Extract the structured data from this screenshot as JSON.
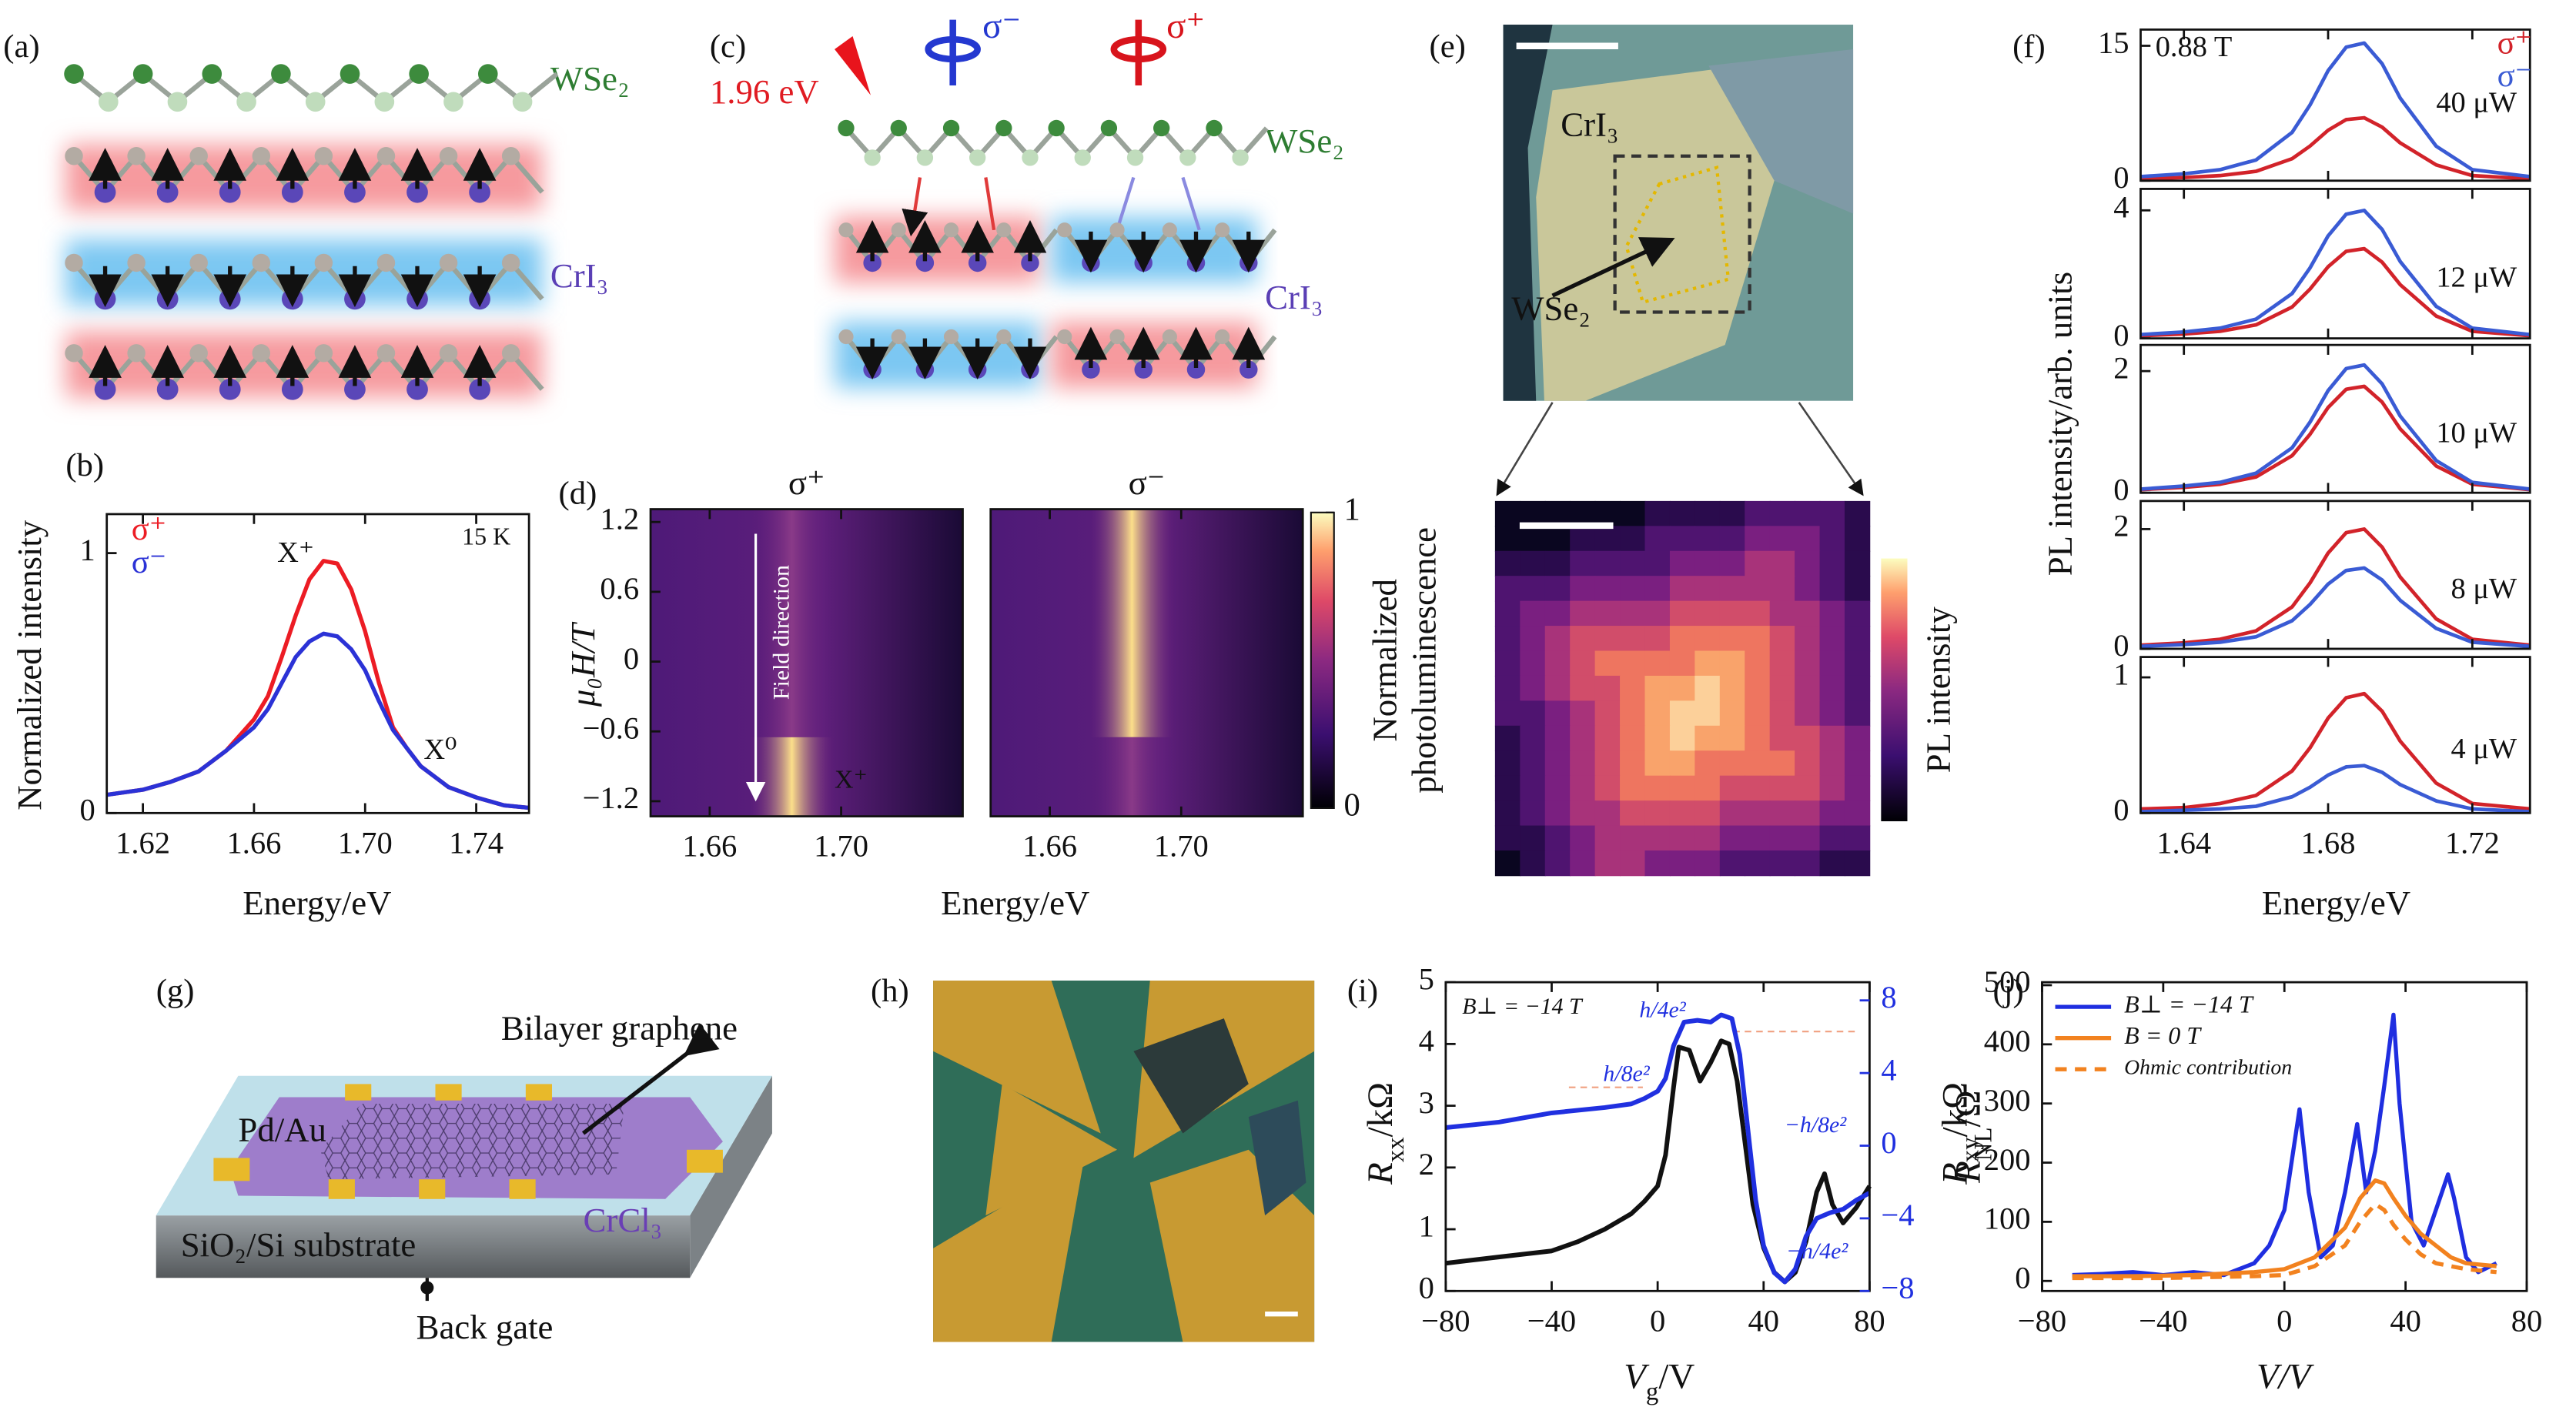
{
  "panel_labels": [
    "(a)",
    "(b)",
    "(c)",
    "(d)",
    "(e)",
    "(f)",
    "(g)",
    "(h)",
    "(i)",
    "(j)"
  ],
  "diagrams": {
    "a": {
      "wse2": "WSe₂",
      "cri3": "CrI₃"
    },
    "c": {
      "energy": "1.96 eV",
      "sigma_minus": "σ⁻",
      "sigma_plus": "σ⁺",
      "wse2": "WSe₂",
      "cri3": "CrI₃"
    },
    "e": {
      "cri3": "CrI₃",
      "wse2": "WSe₂",
      "colorbar_label": "PL intensity"
    },
    "g": {
      "graphene": "Bilayer graphene",
      "contacts": "Pd/Au",
      "crcl3": "CrCl₃",
      "substrate": "SiO₂/Si substrate",
      "gate": "Back gate"
    }
  },
  "chart_data": [
    {
      "type": "line",
      "x": [
        1.607,
        1.62,
        1.63,
        1.64,
        1.65,
        1.66,
        1.665,
        1.67,
        1.675,
        1.68,
        1.685,
        1.69,
        1.695,
        1.7,
        1.705,
        1.71,
        1.715,
        1.72,
        1.73,
        1.74,
        1.75,
        1.759
      ],
      "series": [
        {
          "name": "σ⁺",
          "color": "#ec1c24",
          "values": [
            0.07,
            0.09,
            0.12,
            0.16,
            0.24,
            0.36,
            0.45,
            0.6,
            0.76,
            0.9,
            0.97,
            0.96,
            0.86,
            0.7,
            0.5,
            0.33,
            0.25,
            0.18,
            0.1,
            0.06,
            0.03,
            0.02
          ]
        },
        {
          "name": "σ⁻",
          "color": "#2b32d6",
          "values": [
            0.07,
            0.09,
            0.12,
            0.16,
            0.24,
            0.33,
            0.4,
            0.5,
            0.6,
            0.66,
            0.69,
            0.68,
            0.63,
            0.55,
            0.43,
            0.32,
            0.25,
            0.18,
            0.1,
            0.06,
            0.03,
            0.02
          ]
        }
      ],
      "xlim": [
        1.607,
        1.759
      ],
      "xticks": [
        1.62,
        1.66,
        {
          "value": 1.7,
          "label": "1.70"
        },
        1.74
      ],
      "ylim": [
        0,
        1.15
      ],
      "yticks": [
        0,
        1
      ],
      "xlabel": "Energy/eV",
      "ylabel": "Normalized intensity",
      "annotations": [
        "X⁺",
        "X⁰",
        "15 K"
      ],
      "legend": "upper left"
    },
    {
      "type": "heatmap",
      "panel_titles": [
        "σ⁺",
        "σ⁻"
      ],
      "xlim": [
        1.642,
        1.737
      ],
      "xticks": [
        1.66,
        {
          "value": 1.7,
          "label": "1.70"
        }
      ],
      "ylim": [
        -1.33,
        1.31
      ],
      "yticks": [
        1.2,
        0.6,
        0,
        {
          "value": -0.6,
          "label": "−0.6"
        },
        {
          "value": -1.2,
          "label": "−1.2"
        }
      ],
      "xlabel": "Energy/eV",
      "ylabel": "μ₀H/T",
      "annotations": [
        "Field direction",
        "X⁺"
      ],
      "colorbar": {
        "lim": [
          0,
          1
        ],
        "ticks": [
          0,
          1
        ],
        "label": [
          "Normalized",
          "photoluminescence"
        ]
      }
    },
    {
      "type": "line",
      "x": [
        1.628,
        1.64,
        1.65,
        1.66,
        1.67,
        1.675,
        1.68,
        1.685,
        1.69,
        1.695,
        1.7,
        1.71,
        1.72,
        1.736
      ],
      "xlim": [
        1.628,
        1.736
      ],
      "xticks": [
        1.64,
        1.68,
        1.72
      ],
      "xlabel": "Energy/eV",
      "ylabel": "PL intensity/arb. units",
      "annotation": "0.88 T",
      "legend": [
        {
          "name": "σ⁺",
          "color": "#d2232a"
        },
        {
          "name": "σ⁻",
          "color": "#3a5bd4"
        }
      ],
      "subplots": [
        {
          "label": "40 μW",
          "ylim": [
            0,
            16.8
          ],
          "yticks": [
            0,
            15
          ],
          "series": [
            {
              "values": [
                0.2,
                0.35,
                0.56,
                1.05,
                2.45,
                3.85,
                5.6,
                6.8,
                7,
                5.95,
                4.2,
                1.75,
                0.56,
                0.2
              ]
            },
            {
              "values": [
                0.46,
                0.77,
                1.22,
                2.3,
                5.36,
                8.42,
                12.24,
                14.84,
                15.3,
                13.0,
                9.18,
                3.83,
                1.22,
                0.46
              ]
            }
          ]
        },
        {
          "label": "12 μW",
          "ylim": [
            0,
            4.67
          ],
          "yticks": [
            0,
            4
          ],
          "series": [
            {
              "values": [
                0.08,
                0.14,
                0.22,
                0.42,
                0.98,
                1.54,
                2.24,
                2.72,
                2.8,
                2.38,
                1.68,
                0.7,
                0.22,
                0.08
              ]
            },
            {
              "values": [
                0.12,
                0.2,
                0.32,
                0.6,
                1.4,
                2.2,
                3.2,
                3.88,
                4,
                3.4,
                2.4,
                1,
                0.32,
                0.12
              ]
            }
          ]
        },
        {
          "label": "10 μW",
          "ylim": [
            0,
            2.43
          ],
          "yticks": [
            0,
            2
          ],
          "series": [
            {
              "values": [
                0.05,
                0.09,
                0.14,
                0.26,
                0.61,
                0.96,
                1.4,
                1.7,
                1.75,
                1.49,
                1.05,
                0.44,
                0.14,
                0.05
              ]
            },
            {
              "values": [
                0.06,
                0.11,
                0.17,
                0.32,
                0.74,
                1.16,
                1.68,
                2.04,
                2.1,
                1.79,
                1.26,
                0.53,
                0.17,
                0.06
              ]
            }
          ]
        },
        {
          "label": "8 μW",
          "ylim": [
            0,
            2.47
          ],
          "yticks": [
            0,
            2
          ],
          "series": [
            {
              "values": [
                0.06,
                0.1,
                0.16,
                0.3,
                0.7,
                1.1,
                1.6,
                1.94,
                2,
                1.7,
                1.2,
                0.5,
                0.16,
                0.06
              ]
            },
            {
              "values": [
                0.04,
                0.07,
                0.11,
                0.2,
                0.47,
                0.74,
                1.08,
                1.31,
                1.35,
                1.15,
                0.81,
                0.34,
                0.11,
                0.04
              ]
            }
          ]
        },
        {
          "label": "4 μW",
          "ylim": [
            0,
            1.15
          ],
          "yticks": [
            0,
            1
          ],
          "series": [
            {
              "values": [
                0.03,
                0.04,
                0.07,
                0.13,
                0.31,
                0.48,
                0.7,
                0.85,
                0.88,
                0.75,
                0.53,
                0.22,
                0.07,
                0.03
              ]
            },
            {
              "values": [
                0.01,
                0.02,
                0.03,
                0.05,
                0.12,
                0.19,
                0.28,
                0.34,
                0.35,
                0.3,
                0.21,
                0.09,
                0.03,
                0.01
              ]
            }
          ]
        }
      ]
    },
    {
      "type": "line",
      "xlim": [
        -80,
        80
      ],
      "xticks": [
        {
          "value": -80,
          "label": "−80"
        },
        {
          "value": -40,
          "label": "−40"
        },
        0,
        40,
        80
      ],
      "ylim": [
        0,
        5
      ],
      "yticks": [
        0,
        1,
        2,
        3,
        4,
        5
      ],
      "y2lim": [
        -8,
        9
      ],
      "y2ticks": [
        {
          "value": -8,
          "label": "−8"
        },
        {
          "value": -4,
          "label": "−4"
        },
        0,
        4,
        8
      ],
      "xlabel": [
        "V",
        {
          "sub": "g"
        },
        "/V"
      ],
      "ylabel": [
        "R",
        {
          "sub": "xx"
        },
        "/kΩ"
      ],
      "y2label": [
        "R",
        {
          "sub": "xy"
        },
        "/kΩ"
      ],
      "annotations": [
        "B⊥ = −14 T",
        "h/4e²",
        "h/8e²",
        "−h/8e²",
        "−h/4e²"
      ],
      "series": [
        {
          "color": "#111111",
          "x": [
            -80,
            -60,
            -40,
            -30,
            -20,
            -10,
            -5,
            0,
            3,
            6,
            8,
            12,
            16,
            20,
            24,
            27,
            30,
            33,
            36,
            40,
            44,
            48,
            52,
            56,
            60,
            63,
            66,
            70,
            75,
            80
          ],
          "values": [
            0.45,
            0.55,
            0.65,
            0.8,
            1.0,
            1.25,
            1.45,
            1.7,
            2.2,
            3.3,
            3.95,
            3.9,
            3.4,
            3.7,
            4.05,
            4.0,
            3.4,
            2.4,
            1.4,
            0.7,
            0.3,
            0.15,
            0.3,
            0.8,
            1.6,
            1.9,
            1.4,
            1.1,
            1.35,
            1.7
          ]
        },
        {
          "color": "#2030e0",
          "axis": "y2",
          "x": [
            -80,
            -60,
            -40,
            -20,
            -10,
            -5,
            0,
            3,
            6,
            10,
            15,
            20,
            24,
            28,
            31,
            34,
            37,
            40,
            44,
            48,
            52,
            56,
            60,
            65,
            70,
            75,
            80
          ],
          "values": [
            1.0,
            1.3,
            1.8,
            2.1,
            2.3,
            2.6,
            3.0,
            3.7,
            5.5,
            6.8,
            6.9,
            6.8,
            7.2,
            7.0,
            5.0,
            1.0,
            -3.0,
            -5.5,
            -7.0,
            -7.5,
            -6.8,
            -5.0,
            -4.0,
            -3.7,
            -3.5,
            -3.0,
            -2.6
          ]
        }
      ]
    },
    {
      "type": "line",
      "xlim": [
        -80,
        80
      ],
      "xticks": [
        {
          "value": -80,
          "label": "−80"
        },
        {
          "value": -40,
          "label": "−40"
        },
        0,
        40,
        80
      ],
      "ylim": [
        -17,
        505
      ],
      "yticks": [
        0,
        100,
        200,
        300,
        400,
        500
      ],
      "xlabel": "V/V",
      "ylabel": [
        "R",
        {
          "sub": "NL"
        },
        "/Ω"
      ],
      "legend": "upper left",
      "series": [
        {
          "name": "B⊥ = −14 T",
          "color": "#1f2ee0",
          "dash": "solid",
          "x": [
            -70,
            -60,
            -50,
            -40,
            -30,
            -20,
            -10,
            -5,
            0,
            5,
            8,
            12,
            16,
            20,
            24,
            27,
            30,
            33,
            36,
            38,
            42,
            46,
            50,
            54,
            56,
            60,
            64,
            70
          ],
          "values": [
            10,
            12,
            15,
            10,
            15,
            10,
            30,
            60,
            120,
            290,
            150,
            40,
            60,
            150,
            265,
            150,
            220,
            330,
            450,
            300,
            100,
            60,
            120,
            180,
            140,
            40,
            15,
            30
          ]
        },
        {
          "name": "B = 0 T",
          "color": "#f2821f",
          "dash": "solid",
          "x": [
            -70,
            -50,
            -30,
            -10,
            0,
            10,
            20,
            25,
            30,
            33,
            36,
            40,
            45,
            50,
            55,
            60,
            70
          ],
          "values": [
            8,
            8,
            10,
            15,
            20,
            40,
            90,
            140,
            170,
            165,
            140,
            110,
            80,
            60,
            40,
            30,
            25
          ]
        },
        {
          "name": "Ohmic contribution",
          "color": "#f2821f",
          "dash": "dashed",
          "x": [
            -70,
            -40,
            -10,
            0,
            10,
            20,
            25,
            30,
            33,
            36,
            40,
            45,
            50,
            60,
            70
          ],
          "values": [
            5,
            5,
            8,
            10,
            25,
            60,
            100,
            130,
            120,
            95,
            70,
            45,
            30,
            20,
            15
          ]
        }
      ]
    }
  ]
}
